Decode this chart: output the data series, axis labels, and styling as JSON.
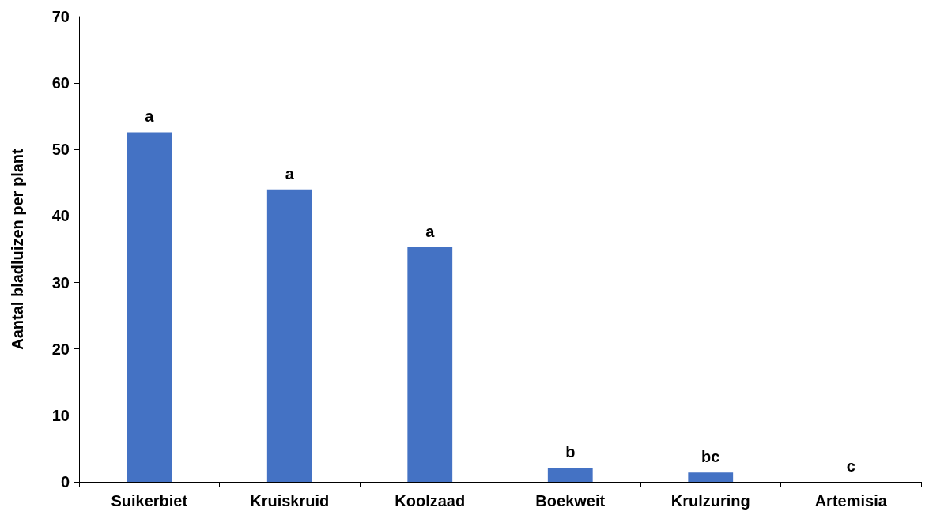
{
  "chart_data": {
    "type": "bar",
    "ylabel": "Aantal bladluizen per plant",
    "categories": [
      "Suikerbiet",
      "Kruiskruid",
      "Koolzaad",
      "Boekweit",
      "Krulzuring",
      "Artemisia"
    ],
    "values": [
      52.6,
      44.0,
      35.3,
      2.1,
      1.4,
      0
    ],
    "color": "#4472c4",
    "ylim": [
      0,
      70
    ],
    "yticks": [
      0,
      10,
      20,
      30,
      40,
      50,
      60,
      70
    ],
    "grid": false,
    "annotations": [
      {
        "text": "a",
        "x": "Suikerbiet",
        "y": 52.6
      },
      {
        "text": "a",
        "x": "Kruiskruid",
        "y": 44.0
      },
      {
        "text": "a",
        "x": "Koolzaad",
        "y": 35.3
      },
      {
        "text": "b",
        "x": "Boekweit",
        "y": 2.1
      },
      {
        "text": "bc",
        "x": "Krulzuring",
        "y": 1.4
      },
      {
        "text": "c",
        "x": "Artemisia",
        "y": 0
      }
    ]
  }
}
